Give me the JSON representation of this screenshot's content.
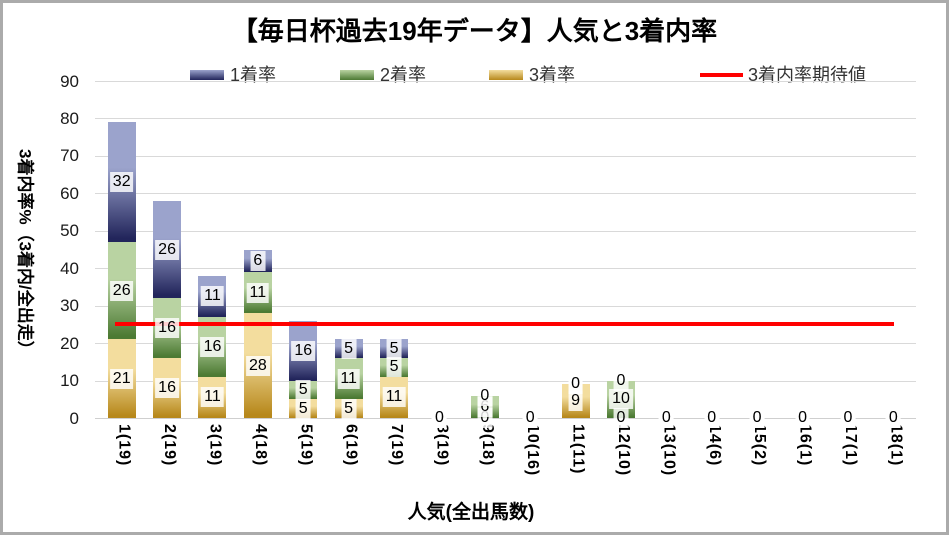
{
  "chart_data": {
    "type": "bar",
    "stacked": true,
    "title": "【毎日杯過去19年データ】人気と3着内率",
    "xlabel": "人気(全出馬数)",
    "ylabel": "3着内率%（3着内/全出走）",
    "ylim": [
      0,
      90
    ],
    "ytick_step": 10,
    "yticks": [
      0,
      10,
      20,
      30,
      40,
      50,
      60,
      70,
      80,
      90
    ],
    "grid": "horizontal",
    "gridline_color": "#d9d9d9",
    "categories": [
      "1(19)",
      "2(19)",
      "3(19)",
      "4(18)",
      "5(19)",
      "6(19)",
      "7(19)",
      "8(19)",
      "9(18)",
      "10(16)",
      "11(11)",
      "12(10)",
      "13(10)",
      "14(6)",
      "15(2)",
      "16(1)",
      "17(1)",
      "18(1)"
    ],
    "series": [
      {
        "name": "3着率",
        "stack_position": "bottom",
        "color_top": "#f3dd9e",
        "color_bottom": "#b7881b",
        "values": [
          21,
          16,
          11,
          28,
          5,
          5,
          11,
          0,
          0,
          0,
          9,
          0,
          0,
          0,
          0,
          0,
          0,
          0
        ]
      },
      {
        "name": "2着率",
        "stack_position": "middle",
        "color_top": "#b9d3a2",
        "color_bottom": "#4c7a33",
        "values": [
          26,
          16,
          16,
          11,
          5,
          11,
          5,
          0,
          6,
          0,
          0,
          10,
          0,
          0,
          0,
          0,
          0,
          0
        ]
      },
      {
        "name": "1着率",
        "stack_position": "top",
        "color_top": "#9ba3cc",
        "color_bottom": "#22255b",
        "values": [
          32,
          26,
          11,
          6,
          16,
          5,
          5,
          0,
          0,
          0,
          0,
          0,
          0,
          0,
          0,
          0,
          0,
          0
        ]
      }
    ],
    "reference_line": {
      "name": "3着内率期待値",
      "value": 25,
      "color": "#ff0000"
    },
    "legend": [
      {
        "label": "1着率",
        "marker": "box",
        "series": "1着率"
      },
      {
        "label": "2着率",
        "marker": "box",
        "series": "2着率"
      },
      {
        "label": "3着率",
        "marker": "box",
        "series": "3着率"
      },
      {
        "label": "3着内率期待値",
        "marker": "line",
        "color": "#ff0000"
      }
    ],
    "legend_position": "top"
  }
}
